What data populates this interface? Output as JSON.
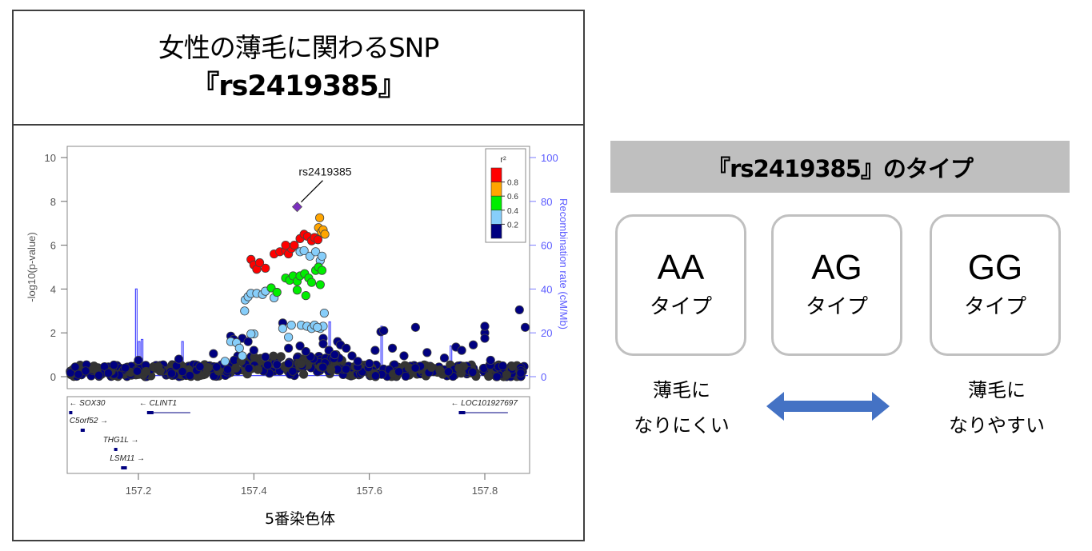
{
  "title": {
    "line1": "女性の薄毛に関わるSNP",
    "line2": "『rs2419385』"
  },
  "chart_data": {
    "type": "scatter",
    "title": "",
    "xlabel": "5番染色体",
    "ylabel": "-log10(p-value)",
    "y2label": "Recombination rate (cM/Mb)",
    "xlim": [
      157.08,
      157.88
    ],
    "ylim": [
      0,
      10
    ],
    "y2lim": [
      0,
      100
    ],
    "x_ticks": [
      "157.2",
      "157.4",
      "157.6",
      "157.8"
    ],
    "y_ticks": [
      "0",
      "2",
      "4",
      "6",
      "8",
      "10"
    ],
    "y2_ticks": [
      "0",
      "20",
      "40",
      "60",
      "80",
      "100"
    ],
    "grid": false,
    "annotation": {
      "label": "rs2419385",
      "x": 157.475,
      "y": 7.75,
      "color": "#7b2fbe",
      "shape": "diamond"
    },
    "legend": {
      "title": "r²",
      "position": "top-right",
      "bins": [
        {
          "range": "0.8-1.0",
          "color": "#ff0000"
        },
        {
          "range": "0.6-0.8",
          "color": "#ffa500"
        },
        {
          "range": "0.4-0.6",
          "color": "#00ee00"
        },
        {
          "range": "0.2-0.4",
          "color": "#87cefa"
        },
        {
          "range": "0.0-0.2",
          "color": "#000080"
        }
      ],
      "tick_labels": [
        "0.8",
        "0.6",
        "0.4",
        "0.2"
      ]
    },
    "series": [
      {
        "name": "r2 0.8-1.0",
        "color": "#ff0000",
        "points": [
          [
            157.395,
            5.35
          ],
          [
            157.4,
            5.1
          ],
          [
            157.405,
            4.9
          ],
          [
            157.41,
            5.2
          ],
          [
            157.42,
            4.95
          ],
          [
            157.435,
            5.6
          ],
          [
            157.445,
            5.7
          ],
          [
            157.455,
            5.75
          ],
          [
            157.46,
            5.6
          ],
          [
            157.465,
            5.85
          ],
          [
            157.47,
            6.0
          ],
          [
            157.48,
            6.3
          ],
          [
            157.487,
            6.5
          ],
          [
            157.493,
            6.4
          ],
          [
            157.5,
            6.2
          ],
          [
            157.505,
            6.35
          ],
          [
            157.511,
            6.25
          ],
          [
            157.455,
            6.0
          ]
        ]
      },
      {
        "name": "r2 0.6-0.8",
        "color": "#ffa500",
        "points": [
          [
            157.514,
            7.25
          ],
          [
            157.512,
            6.8
          ],
          [
            157.517,
            6.6
          ],
          [
            157.52,
            6.7
          ],
          [
            157.523,
            6.5
          ]
        ]
      },
      {
        "name": "r2 0.4-0.6",
        "color": "#00ee00",
        "points": [
          [
            157.455,
            4.5
          ],
          [
            157.462,
            4.4
          ],
          [
            157.468,
            4.6
          ],
          [
            157.475,
            4.35
          ],
          [
            157.48,
            4.6
          ],
          [
            157.488,
            4.7
          ],
          [
            157.495,
            4.5
          ],
          [
            157.5,
            4.3
          ],
          [
            157.507,
            4.85
          ],
          [
            157.512,
            5.0
          ],
          [
            157.518,
            4.85
          ],
          [
            157.515,
            4.2
          ],
          [
            157.43,
            4.05
          ],
          [
            157.44,
            3.85
          ],
          [
            157.475,
            3.95
          ],
          [
            157.49,
            3.7
          ]
        ]
      },
      {
        "name": "r2 0.2-0.4",
        "color": "#87cefa",
        "points": [
          [
            157.385,
            3.5
          ],
          [
            157.39,
            3.65
          ],
          [
            157.395,
            3.8
          ],
          [
            157.405,
            3.8
          ],
          [
            157.415,
            3.75
          ],
          [
            157.42,
            3.9
          ],
          [
            157.435,
            3.6
          ],
          [
            157.384,
            3.0
          ],
          [
            157.4,
            1.95
          ],
          [
            157.465,
            5.9
          ],
          [
            157.47,
            5.95
          ],
          [
            157.48,
            5.7
          ],
          [
            157.487,
            5.75
          ],
          [
            157.497,
            5.5
          ],
          [
            157.507,
            5.7
          ],
          [
            157.515,
            5.3
          ],
          [
            157.518,
            5.5
          ],
          [
            157.522,
            2.9
          ],
          [
            157.515,
            2.2
          ],
          [
            157.52,
            2.3
          ],
          [
            157.45,
            2.2
          ],
          [
            157.465,
            2.35
          ],
          [
            157.482,
            2.35
          ],
          [
            157.492,
            2.3
          ],
          [
            157.5,
            2.2
          ],
          [
            157.505,
            2.35
          ],
          [
            157.51,
            2.25
          ],
          [
            157.36,
            1.6
          ],
          [
            157.37,
            1.55
          ],
          [
            157.375,
            1.3
          ],
          [
            157.35,
            0.7
          ],
          [
            157.38,
            0.95
          ],
          [
            157.395,
            1.95
          ],
          [
            157.46,
            1.8
          ]
        ]
      },
      {
        "name": "r2 0.0-0.2",
        "color": "#000080",
        "points": [
          [
            157.2,
            0.75
          ],
          [
            157.27,
            0.8
          ],
          [
            157.33,
            1.05
          ],
          [
            157.36,
            1.85
          ],
          [
            157.365,
            1.7
          ],
          [
            157.38,
            1.75
          ],
          [
            157.39,
            1.6
          ],
          [
            157.4,
            1.2
          ],
          [
            157.42,
            0.9
          ],
          [
            157.44,
            0.55
          ],
          [
            157.45,
            2.45
          ],
          [
            157.46,
            1.3
          ],
          [
            157.48,
            1.4
          ],
          [
            157.49,
            1.15
          ],
          [
            157.5,
            2.25
          ],
          [
            157.52,
            1.75
          ],
          [
            157.52,
            1.5
          ],
          [
            157.53,
            1.2
          ],
          [
            157.54,
            1.0
          ],
          [
            157.545,
            1.6
          ],
          [
            157.55,
            1.45
          ],
          [
            157.56,
            1.3
          ],
          [
            157.57,
            0.95
          ],
          [
            157.58,
            0.7
          ],
          [
            157.6,
            0.6
          ],
          [
            157.61,
            1.2
          ],
          [
            157.62,
            2.05
          ],
          [
            157.625,
            2.1
          ],
          [
            157.64,
            1.3
          ],
          [
            157.66,
            0.95
          ],
          [
            157.68,
            2.25
          ],
          [
            157.7,
            1.1
          ],
          [
            157.73,
            0.85
          ],
          [
            157.75,
            1.35
          ],
          [
            157.76,
            1.2
          ],
          [
            157.78,
            1.45
          ],
          [
            157.8,
            2.0
          ],
          [
            157.8,
            1.75
          ],
          [
            157.8,
            2.3
          ],
          [
            157.81,
            0.75
          ],
          [
            157.86,
            3.05
          ],
          [
            157.87,
            2.25
          ]
        ]
      }
    ],
    "recombination_rate_peaks": [
      [
        157.195,
        40
      ],
      [
        157.2,
        16
      ],
      [
        157.205,
        17
      ],
      [
        157.275,
        16
      ],
      [
        157.53,
        25
      ],
      [
        157.62,
        23
      ],
      [
        157.74,
        14
      ]
    ],
    "genes": [
      {
        "name": "SOX30",
        "strand": "-",
        "start": 157.08,
        "end": 157.082,
        "row": 0
      },
      {
        "name": "CLINT1",
        "strand": "-",
        "start": 157.215,
        "end": 157.29,
        "row": 0
      },
      {
        "name": "LOC101927697",
        "strand": "-",
        "start": 157.755,
        "end": 157.84,
        "row": 0
      },
      {
        "name": "C5orf52",
        "strand": "+",
        "start": 157.1,
        "end": 157.107,
        "row": 1
      },
      {
        "name": "THG1L",
        "strand": "+",
        "start": 157.158,
        "end": 157.163,
        "row": 2
      },
      {
        "name": "LSM11",
        "strand": "+",
        "start": 157.17,
        "end": 157.18,
        "row": 3
      }
    ]
  },
  "type_panel": {
    "header": "『rs2419385』のタイプ",
    "cards": [
      {
        "genotype": "AA",
        "sub": "タイプ"
      },
      {
        "genotype": "AG",
        "sub": "タイプ"
      },
      {
        "genotype": "GG",
        "sub": "タイプ"
      }
    ],
    "left_label": {
      "line1": "薄毛に",
      "line2": "なりにくい"
    },
    "right_label": {
      "line1": "薄毛に",
      "line2": "なりやすい"
    },
    "arrow_color": "#4472c4"
  }
}
